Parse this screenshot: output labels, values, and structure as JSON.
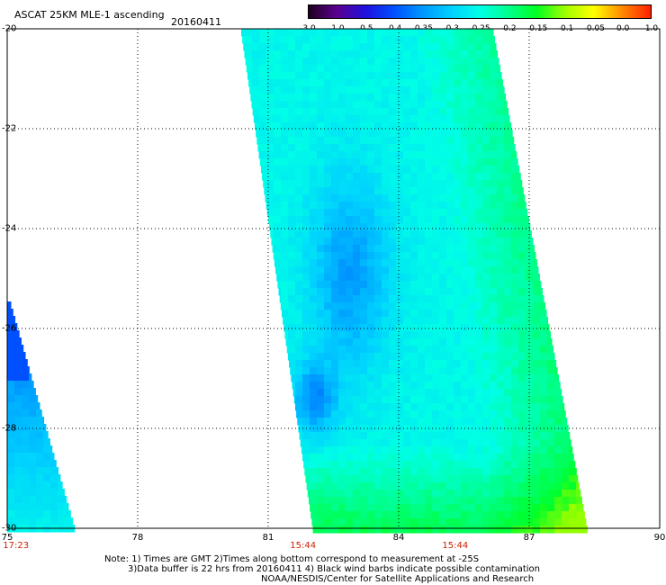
{
  "header": {
    "title": "ASCAT 25KM MLE-1 ascending",
    "date": "20160411"
  },
  "colorbar": {
    "labels": [
      "-3.0",
      "-1.0",
      "-0.5",
      "-0.4",
      "-0.35",
      "-0.3",
      "-0.25",
      "-0.2",
      "-0.15",
      "-0.1",
      "-0.05",
      "0.0",
      "1.0"
    ],
    "colors": [
      "#200020",
      "#5a0090",
      "#2010e0",
      "#0050ff",
      "#0098ff",
      "#00d0ff",
      "#00ffe8",
      "#00ff90",
      "#00ff20",
      "#a0ff00",
      "#ffff00",
      "#ff8800",
      "#ff2000"
    ]
  },
  "map": {
    "lat_labels": [
      "-20",
      "-22",
      "-24",
      "-26",
      "-28",
      "-30"
    ],
    "lon_labels": [
      "75",
      "78",
      "81",
      "84",
      "87",
      "90"
    ],
    "time_labels": [
      {
        "lon": 75.2,
        "text": "17:23"
      },
      {
        "lon": 81.8,
        "text": "15:44"
      },
      {
        "lon": 85.3,
        "text": "15:44"
      }
    ]
  },
  "notes": {
    "line1": "Note: 1) Times are GMT 2)Times along bottom correspond to measurement at -25S",
    "line2": "3)Data buffer is 22 hrs from 20160411 4) Black wind barbs indicate possible contamination",
    "line3": "NOAA/NESDIS/Center for Satellite Applications and Research"
  }
}
